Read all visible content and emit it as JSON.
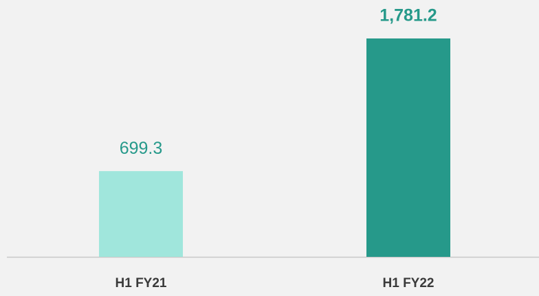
{
  "chart_data": {
    "type": "bar",
    "categories": [
      "H1 FY21",
      "H1 FY22"
    ],
    "values": [
      699.3,
      1781.2
    ],
    "value_labels": [
      "699.3",
      "1,781.2"
    ],
    "colors": [
      "#a0e6dc",
      "#26998a"
    ],
    "label_color": "#26998a"
  }
}
